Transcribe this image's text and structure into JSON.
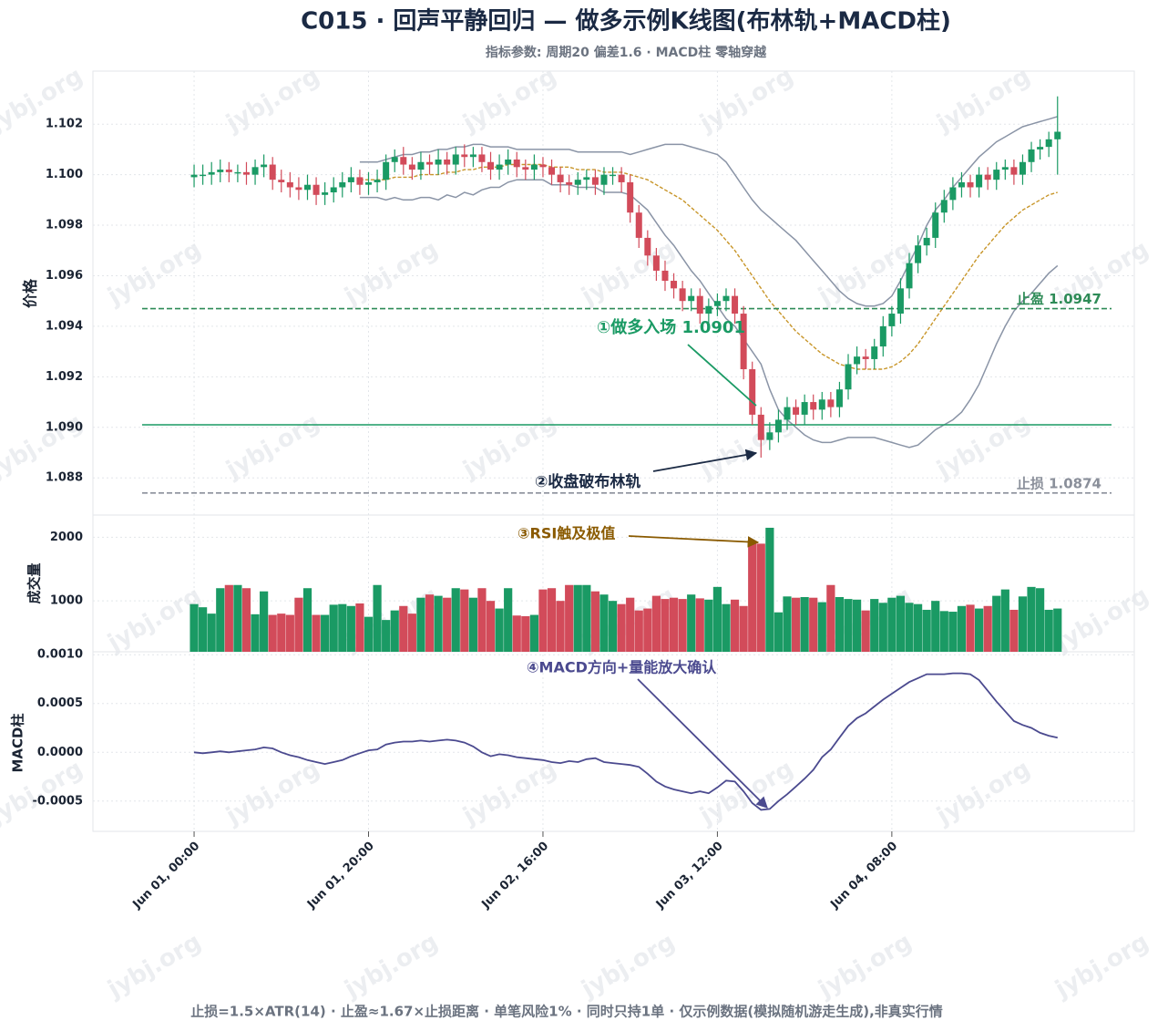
{
  "chart_data": {
    "type": "candlestick",
    "title": "C015 · 回声平静回归 — 做多示例K线图(布林轨+MACD柱)",
    "subtitle": "指标参数: 周期20 偏差1.6 · MACD柱 零轴穿越",
    "footer": "止损=1.5×ATR(14) · 止盈≈1.67×止损距离 · 单笔风险1% · 同时只持1单 · 仅示例数据(模拟随机游走生成),非真实行情",
    "watermark": "jybj.org",
    "y_label": "价格",
    "volume_label": "成交量",
    "macd_label": "MACD柱",
    "up_color": "#1a9a64",
    "down_color": "#d24b5a",
    "band_color": "#8a94a6",
    "mid_color": "#c8962a",
    "macd_color": "#4b4a8f",
    "xlim": [
      -11.6,
      107.8
    ],
    "xticks": [
      {
        "value": 0,
        "label": "Jun 01, 00:00"
      },
      {
        "value": 20,
        "label": "Jun 01, 20:00"
      },
      {
        "value": 40,
        "label": "Jun 02, 16:00"
      },
      {
        "value": 60,
        "label": "Jun 03, 12:00"
      },
      {
        "value": 80,
        "label": "Jun 04, 08:00"
      }
    ],
    "ylim": [
      1.0866,
      1.1041
    ],
    "yticks": [
      1.088,
      {
        "value": 1.09,
        "label": "1.090"
      },
      1.092,
      1.094,
      1.096,
      1.098,
      {
        "value": 1.1,
        "label": "1.100"
      },
      1.102
    ],
    "volume_ylim": [
      200,
      2350
    ],
    "volume_yticks": [
      1000,
      2000
    ],
    "macd_ylim": [
      -0.00081,
      0.00103
    ],
    "macd_yticks": [
      -0.0005,
      {
        "value": 0,
        "label": "0.0000"
      },
      0.0005,
      {
        "value": 0.001,
        "label": "0.0010"
      }
    ],
    "grid": true,
    "open": [
      1.0999,
      1.1,
      1.1,
      1.1001,
      1.1002,
      1.1001,
      1.1001,
      1.1,
      1.1003,
      1.1004,
      1.0998,
      1.0997,
      1.0995,
      1.0994,
      1.0996,
      1.0992,
      1.0993,
      1.0995,
      1.0997,
      1.0999,
      1.0996,
      1.0997,
      1.0998,
      1.1005,
      1.1007,
      1.1004,
      1.1002,
      1.1005,
      1.1004,
      1.1006,
      1.1004,
      1.1008,
      1.1007,
      1.1008,
      1.1005,
      1.1002,
      1.1004,
      1.1006,
      1.1003,
      1.1002,
      1.1004,
      1.1003,
      1.1,
      1.0997,
      1.0996,
      1.0998,
      1.0999,
      1.0996,
      1.1,
      1.1,
      1.0997,
      1.0985,
      1.0975,
      1.0968,
      1.0962,
      1.0958,
      1.0955,
      1.095,
      1.0952,
      1.0945,
      1.0948,
      1.095,
      1.0952,
      1.0945,
      1.0923,
      1.0905,
      1.0895,
      1.0898,
      1.0903,
      1.0908,
      1.0905,
      1.091,
      1.0907,
      1.0911,
      1.0908,
      1.0915,
      1.0925,
      1.0928,
      1.0927,
      1.0932,
      1.094,
      1.0945,
      1.0955,
      1.0965,
      1.0972,
      1.0975,
      1.0985,
      1.099,
      1.0995,
      1.0997,
      1.0995,
      1.1,
      1.0998,
      1.1002,
      1.1003,
      1.1,
      1.1005,
      1.101,
      1.1011,
      1.1014
    ],
    "high": [
      1.1004,
      1.1004,
      1.1005,
      1.1006,
      1.1005,
      1.1004,
      1.1005,
      1.1006,
      1.1008,
      1.1007,
      1.1002,
      1.1001,
      1.0999,
      1.1,
      1.0999,
      1.0997,
      1.0999,
      1.1001,
      1.1003,
      1.1002,
      1.1001,
      1.1002,
      1.1008,
      1.101,
      1.1011,
      1.1007,
      1.1009,
      1.1008,
      1.101,
      1.1009,
      1.1011,
      1.1012,
      1.1011,
      1.1011,
      1.1009,
      1.1008,
      1.101,
      1.1009,
      1.1006,
      1.1008,
      1.1007,
      1.1006,
      1.1003,
      1.1,
      1.1001,
      1.1002,
      1.1002,
      1.1003,
      1.1003,
      1.1003,
      1.1,
      1.0988,
      1.0978,
      1.0971,
      1.0966,
      1.0961,
      1.0958,
      1.0955,
      1.0955,
      1.0951,
      1.0953,
      1.0955,
      1.0955,
      1.0948,
      1.0926,
      1.0908,
      1.0902,
      1.0907,
      1.0912,
      1.0911,
      1.0913,
      1.0913,
      1.0914,
      1.0914,
      1.0918,
      1.0929,
      1.0932,
      1.0931,
      1.0935,
      1.0944,
      1.0948,
      1.0959,
      1.0969,
      1.0976,
      1.0979,
      1.0989,
      1.0994,
      1.0999,
      1.1001,
      1.1,
      1.1003,
      1.1003,
      1.1005,
      1.1006,
      1.1006,
      1.1008,
      1.1013,
      1.1014,
      1.1017,
      1.1031
    ],
    "low": [
      1.0995,
      1.0996,
      1.0996,
      1.0997,
      1.0997,
      1.0997,
      1.0996,
      1.0996,
      1.0999,
      1.0994,
      1.0993,
      1.0991,
      1.099,
      1.099,
      1.0988,
      1.0988,
      1.0989,
      1.0991,
      1.0993,
      1.0992,
      1.0992,
      1.0993,
      1.0994,
      1.1001,
      1.1,
      1.0998,
      1.0998,
      1.1,
      1.1,
      1.1,
      1.1,
      1.1003,
      1.1003,
      1.1001,
      1.0998,
      1.0998,
      1.1,
      1.0999,
      1.0998,
      1.0998,
      1.0999,
      1.0996,
      1.0993,
      1.0992,
      1.0992,
      1.0994,
      1.0992,
      1.0992,
      1.0996,
      1.0993,
      1.0981,
      1.0971,
      1.0964,
      1.0958,
      1.0954,
      1.0951,
      1.0946,
      1.0946,
      1.0941,
      1.0941,
      1.0944,
      1.0946,
      1.0941,
      1.0919,
      1.0901,
      1.0888,
      1.0891,
      1.0894,
      1.0899,
      1.0901,
      1.0901,
      1.0903,
      1.0903,
      1.0904,
      1.0904,
      1.0911,
      1.0921,
      1.0923,
      1.0923,
      1.0928,
      1.0936,
      1.0941,
      1.0951,
      1.0961,
      1.0968,
      1.0971,
      1.0981,
      1.0986,
      1.0991,
      1.0991,
      1.0991,
      1.0994,
      1.0994,
      1.0998,
      1.0996,
      1.0996,
      1.1001,
      1.1006,
      1.1007,
      1.1
    ],
    "close": [
      1.1,
      1.1,
      1.1001,
      1.1002,
      1.1001,
      1.1001,
      1.1,
      1.1003,
      1.1004,
      1.0998,
      1.0997,
      1.0995,
      1.0994,
      1.0996,
      1.0992,
      1.0993,
      1.0995,
      1.0997,
      1.0999,
      1.0996,
      1.0997,
      1.0998,
      1.1005,
      1.1007,
      1.1004,
      1.1002,
      1.1005,
      1.1004,
      1.1006,
      1.1004,
      1.1008,
      1.1007,
      1.1008,
      1.1005,
      1.1002,
      1.1004,
      1.1006,
      1.1003,
      1.1002,
      1.1004,
      1.1003,
      1.1,
      1.0997,
      1.0996,
      1.0998,
      1.0999,
      1.0996,
      1.1,
      1.1,
      1.0997,
      1.0985,
      1.0975,
      1.0968,
      1.0962,
      1.0958,
      1.0955,
      1.095,
      1.0952,
      1.0945,
      1.0948,
      1.095,
      1.0952,
      1.0945,
      1.0923,
      1.0905,
      1.0895,
      1.0898,
      1.0903,
      1.0908,
      1.0905,
      1.091,
      1.0907,
      1.0911,
      1.0908,
      1.0915,
      1.0925,
      1.0928,
      1.0927,
      1.0932,
      1.094,
      1.0945,
      1.0955,
      1.0965,
      1.0972,
      1.0975,
      1.0985,
      1.099,
      1.0995,
      1.0997,
      1.0995,
      1.1,
      1.0998,
      1.1002,
      1.1003,
      1.1,
      1.1005,
      1.101,
      1.1011,
      1.1014,
      1.1017
    ],
    "upper": [
      null,
      null,
      null,
      null,
      null,
      null,
      null,
      null,
      null,
      null,
      null,
      null,
      null,
      null,
      null,
      null,
      null,
      null,
      null,
      1.1005,
      1.1005,
      1.1005,
      1.1006,
      1.1007,
      1.1008,
      1.1008,
      1.1009,
      1.1009,
      1.101,
      1.101,
      1.1011,
      1.1011,
      1.1012,
      1.1012,
      1.1011,
      1.1011,
      1.1011,
      1.101,
      1.101,
      1.101,
      1.101,
      1.101,
      1.101,
      1.101,
      1.1009,
      1.1009,
      1.1009,
      1.1009,
      1.1009,
      1.1009,
      1.1008,
      1.1009,
      1.101,
      1.1011,
      1.1012,
      1.1012,
      1.1012,
      1.1011,
      1.101,
      1.1009,
      1.1008,
      1.1005,
      1.1,
      1.0995,
      1.099,
      1.0986,
      1.0983,
      1.098,
      1.0977,
      1.0974,
      1.097,
      1.0966,
      1.0962,
      1.0958,
      1.0954,
      1.0951,
      1.0949,
      1.0948,
      1.0948,
      1.0949,
      1.0952,
      1.0958,
      1.0965,
      1.0972,
      1.098,
      1.0986,
      1.099,
      1.0995,
      1.0999,
      1.1003,
      1.1007,
      1.101,
      1.1013,
      1.1015,
      1.1017,
      1.1019,
      1.102,
      1.1021,
      1.1022,
      1.1023
    ],
    "middle": [
      null,
      null,
      null,
      null,
      null,
      null,
      null,
      null,
      null,
      null,
      null,
      null,
      null,
      null,
      null,
      null,
      null,
      null,
      null,
      1.0998,
      1.0998,
      1.0998,
      1.0998,
      1.0999,
      1.0999,
      1.0999,
      1.1,
      1.1,
      1.1,
      1.1001,
      1.1001,
      1.1002,
      1.1002,
      1.1003,
      1.1003,
      1.1003,
      1.1004,
      1.1004,
      1.1004,
      1.1004,
      1.1004,
      1.1003,
      1.1003,
      1.1003,
      1.1002,
      1.1002,
      1.1002,
      1.1001,
      1.1001,
      1.1001,
      1.1,
      1.0999,
      1.0998,
      1.0996,
      1.0994,
      1.0992,
      1.099,
      1.0987,
      1.0984,
      1.0981,
      1.0978,
      1.0974,
      1.097,
      1.0965,
      1.096,
      1.0955,
      1.095,
      1.0946,
      1.0942,
      1.0938,
      1.0935,
      1.0932,
      1.0929,
      1.0927,
      1.0925,
      1.0924,
      1.0923,
      1.0923,
      1.0923,
      1.0923,
      1.0924,
      1.0926,
      1.0929,
      1.0933,
      1.0938,
      1.0943,
      1.0948,
      1.0953,
      1.0958,
      1.0963,
      1.0968,
      1.0972,
      1.0976,
      1.098,
      1.0983,
      1.0986,
      1.0988,
      1.099,
      1.0992,
      1.0993
    ],
    "lower": [
      null,
      null,
      null,
      null,
      null,
      null,
      null,
      null,
      null,
      null,
      null,
      null,
      null,
      null,
      null,
      null,
      null,
      null,
      null,
      1.0991,
      1.0991,
      1.0991,
      1.099,
      1.0991,
      1.099,
      1.099,
      1.0991,
      1.0991,
      1.099,
      1.0992,
      1.0991,
      1.0993,
      1.0992,
      1.0994,
      1.0995,
      1.0995,
      1.0997,
      1.0998,
      1.0998,
      1.0998,
      1.0998,
      1.0996,
      1.0996,
      1.0996,
      1.0995,
      1.0995,
      1.0995,
      1.0993,
      1.0993,
      1.0993,
      1.0992,
      1.0989,
      1.0986,
      1.0981,
      1.0976,
      1.0972,
      1.0967,
      1.0962,
      1.0958,
      1.0953,
      1.0948,
      1.0943,
      1.094,
      1.0935,
      1.093,
      1.0925,
      1.0915,
      1.0907,
      1.0903,
      1.09,
      1.0897,
      1.0895,
      1.0894,
      1.0894,
      1.0895,
      1.0896,
      1.0896,
      1.0896,
      1.0896,
      1.0895,
      1.0894,
      1.0893,
      1.0892,
      1.0893,
      1.0896,
      1.0899,
      1.0901,
      1.0903,
      1.0906,
      1.0911,
      1.0917,
      1.0925,
      1.0933,
      1.094,
      1.0946,
      1.095,
      1.0953,
      1.0957,
      1.0961,
      1.0964
    ],
    "volume": [
      950,
      900,
      800,
      1200,
      1250,
      1250,
      1200,
      790,
      1150,
      780,
      800,
      780,
      1050,
      1200,
      780,
      780,
      940,
      950,
      920,
      960,
      750,
      1250,
      700,
      850,
      920,
      800,
      1050,
      1100,
      1080,
      1050,
      1200,
      1180,
      1050,
      1200,
      1000,
      880,
      1200,
      770,
      760,
      780,
      1180,
      1200,
      1000,
      1250,
      1250,
      1250,
      1150,
      1100,
      1000,
      950,
      1050,
      850,
      880,
      1080,
      1030,
      1050,
      1030,
      1100,
      1040,
      1020,
      1220,
      950,
      1020,
      920,
      1900,
      1900,
      2150,
      820,
      1070,
      1050,
      1060,
      1050,
      980,
      1250,
      1060,
      1030,
      1020,
      850,
      1030,
      970,
      1050,
      1080,
      970,
      950,
      860,
      1000,
      840,
      830,
      920,
      940,
      880,
      920,
      1080,
      1180,
      860,
      1070,
      1220,
      1200,
      860,
      880
    ],
    "macd": [
      0.0,
      -1e-05,
      0.0,
      1e-05,
      0.0,
      1e-05,
      2e-05,
      3e-05,
      5e-05,
      4e-05,
      0.0,
      -3e-05,
      -5e-05,
      -8e-05,
      -0.0001,
      -0.00012,
      -0.0001,
      -8e-05,
      -4e-05,
      -1e-05,
      2e-05,
      3e-05,
      8e-05,
      0.0001,
      0.00011,
      0.00011,
      0.00012,
      0.00011,
      0.00012,
      0.00013,
      0.00012,
      0.0001,
      6e-05,
      0.0,
      -4e-05,
      -2e-05,
      -3e-05,
      -5e-05,
      -6e-05,
      -7e-05,
      -8e-05,
      -0.0001,
      -0.00011,
      -9e-05,
      -0.0001,
      -7e-05,
      -6e-05,
      -0.0001,
      -0.00011,
      -0.00012,
      -0.00013,
      -0.00015,
      -0.00022,
      -0.0003,
      -0.00035,
      -0.00038,
      -0.0004,
      -0.00042,
      -0.0004,
      -0.00042,
      -0.00036,
      -0.00029,
      -0.0003,
      -0.0004,
      -0.00052,
      -0.00059,
      -0.00058,
      -0.0005,
      -0.00043,
      -0.00035,
      -0.00027,
      -0.00018,
      -5e-05,
      3e-05,
      0.00015,
      0.00027,
      0.00035,
      0.0004,
      0.00047,
      0.00054,
      0.0006,
      0.00066,
      0.00072,
      0.00076,
      0.0008,
      0.0008,
      0.0008,
      0.00081,
      0.00081,
      0.0008,
      0.00074,
      0.00063,
      0.00052,
      0.00042,
      0.00032,
      0.00028,
      0.00025,
      0.0002,
      0.00017,
      0.00015
    ],
    "levels": [
      {
        "name": "entry",
        "value": 1.0901,
        "color": "#1a9a64"
      },
      {
        "name": "take_profit",
        "value": 1.0947,
        "label": "止盈 1.0947",
        "color": "#2e8b57"
      },
      {
        "name": "stop_loss",
        "value": 1.0874,
        "label": "止损 1.0874",
        "color": "#8a8f9a"
      }
    ],
    "annotations": [
      {
        "text": "①做多入场 1.0901",
        "color": "#1a9a64"
      },
      {
        "text": "②收盘破布林轨",
        "color": "#1b2a44"
      },
      {
        "text": "③RSI触及极值",
        "color": "#8a5a00"
      },
      {
        "text": "④MACD方向+量能放大确认",
        "color": "#4b4a8f"
      }
    ]
  }
}
